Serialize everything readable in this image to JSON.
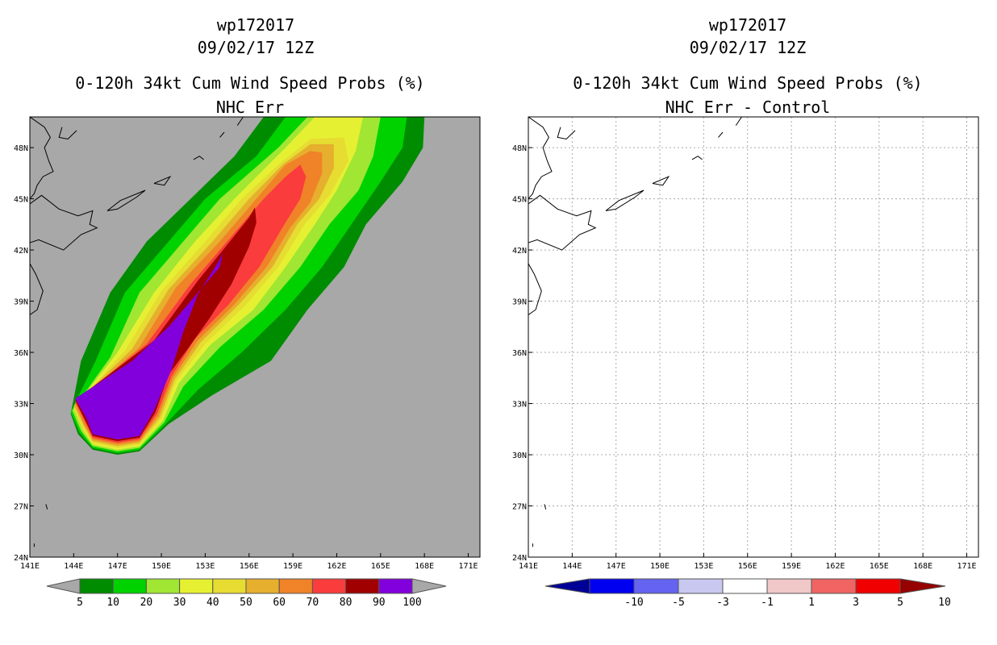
{
  "panels": [
    {
      "id": "left",
      "title1": "wp172017",
      "title2": "09/02/17 12Z",
      "title3": "0-120h 34kt Cum Wind Speed Probs (%)",
      "title4": "NHC Err",
      "background": "#a8a8a8"
    },
    {
      "id": "right",
      "title1": "wp172017",
      "title2": "09/02/17 12Z",
      "title3": "0-120h 34kt Cum Wind Speed Probs (%)",
      "title4": "NHC Err - Control",
      "background": "#ffffff"
    }
  ],
  "chart_data": [
    {
      "type": "heatmap",
      "title": "0-120h 34kt Cum Wind Speed Probs (%)",
      "subtitle": "NHC Err",
      "storm": "wp172017",
      "init": "09/02/17 12Z",
      "x_ticks": [
        "141E",
        "144E",
        "147E",
        "150E",
        "153E",
        "156E",
        "159E",
        "162E",
        "165E",
        "168E",
        "171E"
      ],
      "y_ticks": [
        "24N",
        "27N",
        "30N",
        "33N",
        "36N",
        "39N",
        "42N",
        "45N",
        "48N"
      ],
      "xlim": [
        141,
        171.8
      ],
      "ylim": [
        24,
        49.8
      ],
      "grid": false,
      "legend_placement": "bottom",
      "legend_labels": [
        "5",
        "10",
        "20",
        "30",
        "40",
        "50",
        "60",
        "70",
        "80",
        "90",
        "100"
      ],
      "legend_colors": [
        "#008c00",
        "#00d200",
        "#a0e632",
        "#e6f032",
        "#e6dc32",
        "#e6af2d",
        "#f08228",
        "#fa3c3c",
        "#a00000",
        "#8200dc"
      ],
      "contours": [
        {
          "level": 5,
          "color": "#008c00",
          "polygon": [
            [
              143.8,
              32.4
            ],
            [
              144.5,
              35.5
            ],
            [
              146.5,
              39.5
            ],
            [
              149,
              42.5
            ],
            [
              152,
              45
            ],
            [
              155,
              47.5
            ],
            [
              157,
              49.8
            ],
            [
              168,
              49.8
            ],
            [
              167.9,
              48
            ],
            [
              166.5,
              46
            ],
            [
              164,
              43.5
            ],
            [
              162.5,
              41
            ],
            [
              160,
              38.5
            ],
            [
              157.5,
              35.5
            ],
            [
              153.5,
              33.5
            ],
            [
              150.5,
              31.8
            ],
            [
              148.5,
              30.2
            ],
            [
              147,
              30
            ],
            [
              145.3,
              30.3
            ],
            [
              144.3,
              31.2
            ]
          ]
        },
        {
          "level": 10,
          "color": "#00d200",
          "polygon": [
            [
              143.8,
              32.5
            ],
            [
              145.5,
              35.5
            ],
            [
              147.5,
              39.5
            ],
            [
              150.5,
              42.5
            ],
            [
              153,
              45
            ],
            [
              156.5,
              47.5
            ],
            [
              158.5,
              49.8
            ],
            [
              166.8,
              49.8
            ],
            [
              166.5,
              48
            ],
            [
              165,
              46
            ],
            [
              163,
              43.5
            ],
            [
              161,
              41
            ],
            [
              158.5,
              38.5
            ],
            [
              155.5,
              36
            ],
            [
              152.5,
              33.8
            ],
            [
              150.3,
              31.8
            ],
            [
              148.5,
              30.3
            ],
            [
              147,
              30.1
            ],
            [
              145.3,
              30.4
            ],
            [
              144.4,
              31.3
            ]
          ]
        },
        {
          "level": 20,
          "color": "#a0e632",
          "polygon": [
            [
              143.9,
              32.6
            ],
            [
              146.5,
              35.7
            ],
            [
              148.5,
              39.5
            ],
            [
              151.5,
              42.5
            ],
            [
              154,
              45
            ],
            [
              158,
              48
            ],
            [
              160,
              49.8
            ],
            [
              165,
              49.8
            ],
            [
              164.5,
              47.5
            ],
            [
              163.5,
              45.5
            ],
            [
              161.5,
              43.5
            ],
            [
              159.5,
              41
            ],
            [
              157,
              38.5
            ],
            [
              154,
              36.3
            ],
            [
              151.5,
              34
            ],
            [
              150.2,
              31.9
            ],
            [
              148.5,
              30.4
            ],
            [
              147,
              30.2
            ],
            [
              145.3,
              30.5
            ],
            [
              144.5,
              31.4
            ]
          ]
        },
        {
          "level": 30,
          "color": "#e6f032",
          "polygon": [
            [
              144,
              32.7
            ],
            [
              147,
              36
            ],
            [
              149.5,
              39.5
            ],
            [
              152.3,
              42.5
            ],
            [
              155,
              45
            ],
            [
              158.5,
              48
            ],
            [
              160.5,
              49.8
            ],
            [
              163.8,
              49.8
            ],
            [
              163.3,
              47.8
            ],
            [
              162,
              45.5
            ],
            [
              160.5,
              43.5
            ],
            [
              158.5,
              41
            ],
            [
              156.3,
              38.5
            ],
            [
              153.3,
              36.4
            ],
            [
              151.2,
              34.2
            ],
            [
              150.1,
              32
            ],
            [
              148.5,
              30.5
            ],
            [
              147,
              30.3
            ],
            [
              145.3,
              30.6
            ],
            [
              144.6,
              31.5
            ]
          ]
        },
        {
          "level": 40,
          "color": "#e6dc32",
          "polygon": [
            [
              144,
              32.8
            ],
            [
              147.5,
              36.1
            ],
            [
              150,
              39.6
            ],
            [
              153,
              42.5
            ],
            [
              155.5,
              45
            ],
            [
              158,
              47
            ],
            [
              160.2,
              48.5
            ],
            [
              162.5,
              48.6
            ],
            [
              162.8,
              47.2
            ],
            [
              161.5,
              45.2
            ],
            [
              159.8,
              43.5
            ],
            [
              158,
              41
            ],
            [
              155.8,
              38.8
            ],
            [
              153,
              36.5
            ],
            [
              151,
              34.3
            ],
            [
              150,
              32.1
            ],
            [
              148.5,
              30.6
            ],
            [
              147,
              30.4
            ],
            [
              145.3,
              30.7
            ],
            [
              144.6,
              31.6
            ]
          ]
        },
        {
          "level": 50,
          "color": "#e6af2d",
          "polygon": [
            [
              144,
              32.9
            ],
            [
              148,
              36.2
            ],
            [
              150.5,
              39.7
            ],
            [
              153.5,
              42.5
            ],
            [
              156,
              45
            ],
            [
              158.3,
              47
            ],
            [
              160.2,
              48.2
            ],
            [
              161.8,
              48.2
            ],
            [
              161.8,
              46.8
            ],
            [
              160.8,
              45
            ],
            [
              159.3,
              43.5
            ],
            [
              157.6,
              41
            ],
            [
              155.3,
              38.8
            ],
            [
              152.7,
              36.6
            ],
            [
              150.9,
              34.4
            ],
            [
              149.9,
              32.2
            ],
            [
              148.5,
              30.7
            ],
            [
              147,
              30.5
            ],
            [
              145.3,
              30.8
            ],
            [
              144.7,
              31.7
            ]
          ]
        },
        {
          "level": 60,
          "color": "#f08228",
          "polygon": [
            [
              144.1,
              33
            ],
            [
              148.5,
              36.3
            ],
            [
              151,
              39.8
            ],
            [
              154,
              42.5
            ],
            [
              156.5,
              45
            ],
            [
              158.5,
              47
            ],
            [
              160.2,
              47.8
            ],
            [
              161,
              47.7
            ],
            [
              161,
              46.5
            ],
            [
              160.2,
              44.8
            ],
            [
              158.8,
              43.3
            ],
            [
              157.2,
              41
            ],
            [
              155,
              38.8
            ],
            [
              152.5,
              36.7
            ],
            [
              150.8,
              34.5
            ],
            [
              149.8,
              32.3
            ],
            [
              148.5,
              30.8
            ],
            [
              147,
              30.6
            ],
            [
              145.3,
              30.9
            ],
            [
              144.7,
              31.8
            ]
          ]
        },
        {
          "level": 70,
          "color": "#fa3c3c",
          "polygon": [
            [
              144.1,
              33.1
            ],
            [
              149,
              36.5
            ],
            [
              152,
              40
            ],
            [
              154.5,
              42.5
            ],
            [
              157,
              45
            ],
            [
              158.5,
              46.3
            ],
            [
              159.5,
              47
            ],
            [
              159.9,
              46.3
            ],
            [
              159.5,
              45
            ],
            [
              158.2,
              43.2
            ],
            [
              156.7,
              41
            ],
            [
              154.6,
              38.8
            ],
            [
              152.3,
              36.8
            ],
            [
              150.7,
              34.6
            ],
            [
              149.7,
              32.4
            ],
            [
              148.5,
              30.9
            ],
            [
              147,
              30.7
            ],
            [
              145.3,
              31
            ],
            [
              144.8,
              31.9
            ]
          ]
        },
        {
          "level": 80,
          "color": "#a00000",
          "polygon": [
            [
              144.1,
              33.2
            ],
            [
              149.5,
              36.7
            ],
            [
              152.5,
              40.2
            ],
            [
              154.5,
              42.3
            ],
            [
              156,
              43.9
            ],
            [
              156.4,
              44.5
            ],
            [
              156.5,
              43.6
            ],
            [
              156,
              42.2
            ],
            [
              154.8,
              40
            ],
            [
              153.3,
              38
            ],
            [
              151.8,
              36.2
            ],
            [
              150.5,
              34.7
            ],
            [
              149.6,
              32.5
            ],
            [
              148.5,
              31
            ],
            [
              147,
              30.8
            ],
            [
              145.3,
              31.1
            ],
            [
              144.8,
              32
            ]
          ]
        },
        {
          "level": 90,
          "color": "#8200dc",
          "polygon": [
            [
              144.1,
              33.3
            ],
            [
              148,
              35.5
            ],
            [
              150.5,
              37.5
            ],
            [
              152.5,
              39.5
            ],
            [
              154,
              41
            ],
            [
              154.2,
              41.8
            ],
            [
              153.9,
              41.3
            ],
            [
              152.5,
              39.4
            ],
            [
              151.5,
              37.2
            ],
            [
              150.7,
              35
            ],
            [
              149.5,
              32.6
            ],
            [
              148.5,
              31.1
            ],
            [
              147,
              30.9
            ],
            [
              145.3,
              31.2
            ],
            [
              144.9,
              32.1
            ]
          ]
        }
      ]
    },
    {
      "type": "heatmap",
      "title": "0-120h 34kt Cum Wind Speed Probs (%)",
      "subtitle": "NHC Err - Control",
      "storm": "wp172017",
      "init": "09/02/17 12Z",
      "x_ticks": [
        "141E",
        "144E",
        "147E",
        "150E",
        "153E",
        "156E",
        "159E",
        "162E",
        "165E",
        "168E",
        "171E"
      ],
      "y_ticks": [
        "24N",
        "27N",
        "30N",
        "33N",
        "36N",
        "39N",
        "42N",
        "45N",
        "48N"
      ],
      "xlim": [
        141,
        171.8
      ],
      "ylim": [
        24,
        49.8
      ],
      "grid": true,
      "legend_placement": "bottom",
      "legend_labels": [
        "-10",
        "-5",
        "-3",
        "-1",
        "1",
        "3",
        "5",
        "10"
      ],
      "legend_colors": [
        "#000096",
        "#0000f0",
        "#6464f0",
        "#c8c8f0",
        "#ffffff",
        "#f0c8c8",
        "#f06464",
        "#f00000",
        "#960000"
      ],
      "contours": []
    }
  ]
}
